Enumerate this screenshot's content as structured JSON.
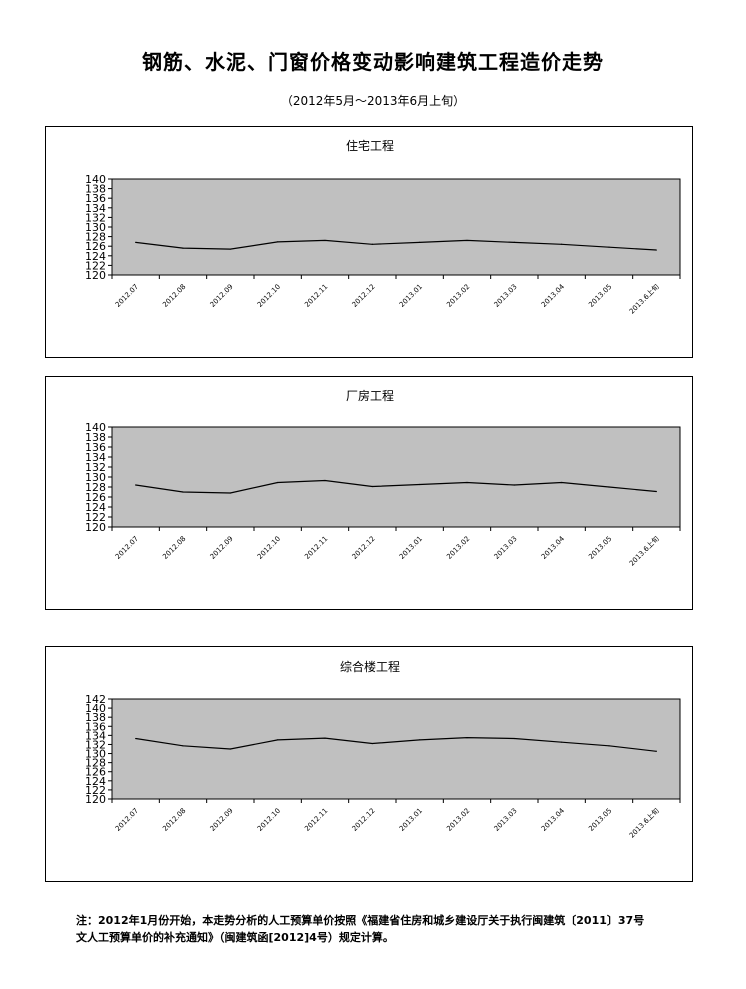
{
  "page": {
    "title": "钢筋、水泥、门窗价格变动影响建筑工程造价走势",
    "subtitle": "（2012年5月～2013年6月上旬）",
    "footnote_line1": "注：2012年1月份开始，本走势分析的人工预算单价按照《福建省住房和城乡建设厅关于执行闽建筑〔2011〕37号",
    "footnote_line2": "文人工预算单价的补充通知》（闽建筑函[2012]4号）规定计算。"
  },
  "colors": {
    "plot_bg": "#c0c0c0",
    "line": "#000000",
    "frame": "#000000"
  },
  "chart_data": [
    {
      "type": "line",
      "title": "住宅工程",
      "categories": [
        "2012.07",
        "2012.08",
        "2012.09",
        "2012.10",
        "2012.11",
        "2012.12",
        "2013.01",
        "2013.02",
        "2013.03",
        "2013.04",
        "2013.05",
        "2013.6上旬"
      ],
      "series": [
        {
          "values": [
            126.8,
            125.6,
            125.4,
            126.9,
            127.2,
            126.4,
            126.8,
            127.2,
            126.8,
            126.4,
            125.8,
            125.2
          ]
        }
      ],
      "ylim": [
        120,
        140
      ],
      "yticks": [
        "120",
        "122",
        "124",
        "126",
        "128",
        "130",
        "132",
        "134",
        "136",
        "138",
        "140"
      ],
      "grid": false,
      "legend": "none"
    },
    {
      "type": "line",
      "title": "厂房工程",
      "categories": [
        "2012.07",
        "2012.08",
        "2012.09",
        "2012.10",
        "2012.11",
        "2012.12",
        "2013.01",
        "2013.02",
        "2013.03",
        "2013.04",
        "2013.05",
        "2013.6上旬"
      ],
      "series": [
        {
          "values": [
            128.4,
            127.0,
            126.8,
            128.9,
            129.3,
            128.1,
            128.5,
            128.9,
            128.4,
            128.9,
            128.0,
            127.1
          ]
        }
      ],
      "ylim": [
        120,
        140
      ],
      "yticks": [
        "120",
        "122",
        "124",
        "126",
        "128",
        "130",
        "132",
        "134",
        "136",
        "138",
        "140"
      ],
      "grid": false,
      "legend": "none"
    },
    {
      "type": "line",
      "title": "综合楼工程",
      "categories": [
        "2012.07",
        "2012.08",
        "2012.09",
        "2012.10",
        "2012.11",
        "2012.12",
        "2013.01",
        "2013.02",
        "2013.03",
        "2013.04",
        "2013.05",
        "2013.6上旬"
      ],
      "series": [
        {
          "values": [
            133.3,
            131.7,
            131.0,
            133.0,
            133.4,
            132.2,
            133.0,
            133.5,
            133.3,
            132.5,
            131.7,
            130.5
          ]
        }
      ],
      "ylim": [
        120,
        142
      ],
      "yticks": [
        "120",
        "122",
        "124",
        "126",
        "128",
        "130",
        "132",
        "134",
        "136",
        "138",
        "140",
        "142"
      ],
      "grid": false,
      "legend": "none"
    }
  ]
}
